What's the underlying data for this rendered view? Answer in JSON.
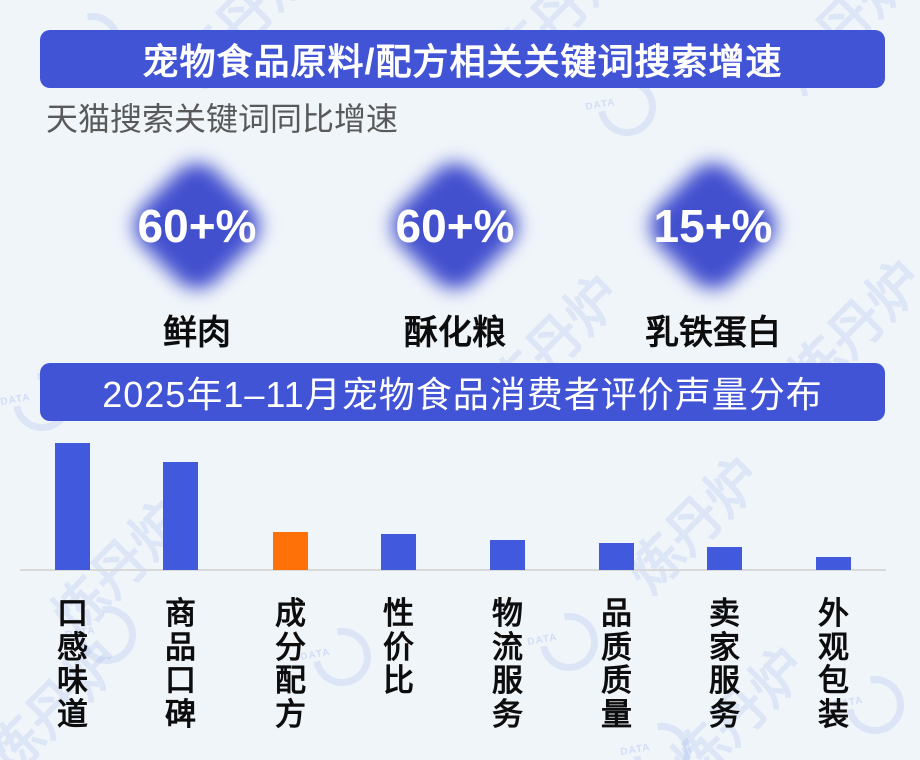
{
  "header": {
    "title": "宠物食品原料/配方相关关键词搜索增速",
    "subtitle": "天猫搜索关键词同比增速"
  },
  "stats": [
    {
      "value": "60+%",
      "label": "鲜肉"
    },
    {
      "value": "60+%",
      "label": "酥化粮"
    },
    {
      "value": "15+%",
      "label": "乳铁蛋白"
    }
  ],
  "chart": {
    "banner_title": "2025年1–11月宠物食品消费者评价声量分布"
  },
  "chart_data": {
    "type": "bar",
    "title": "2025年1–11月宠物食品消费者评价声量分布",
    "categories": [
      "口感味道",
      "商品口碑",
      "成分配方",
      "性价比",
      "物流服务",
      "品质质量",
      "卖家服务",
      "外观包装"
    ],
    "values": [
      100,
      85,
      30,
      28,
      24,
      21,
      18,
      10
    ],
    "value_note": "relative volume share, no numeric axis shown in image",
    "highlight_index": 2,
    "xlabel": "",
    "ylabel": "",
    "ylim": [
      0,
      105
    ],
    "grid": false,
    "legend": false,
    "bar_color": "#4159dd",
    "highlight_color": "#fd7108",
    "label_orientation": "vertical"
  },
  "watermark": {
    "text": "炼丹炉",
    "badge_text": "DATA"
  },
  "colors": {
    "background": "#f0f5fa",
    "banner_bg": "#4254d6",
    "banner_text": "#ffffff",
    "diamond": "#4350ce",
    "subtitle_text": "#595959",
    "label_text": "#0d0d0d",
    "axis_line": "#d9d9d9"
  }
}
